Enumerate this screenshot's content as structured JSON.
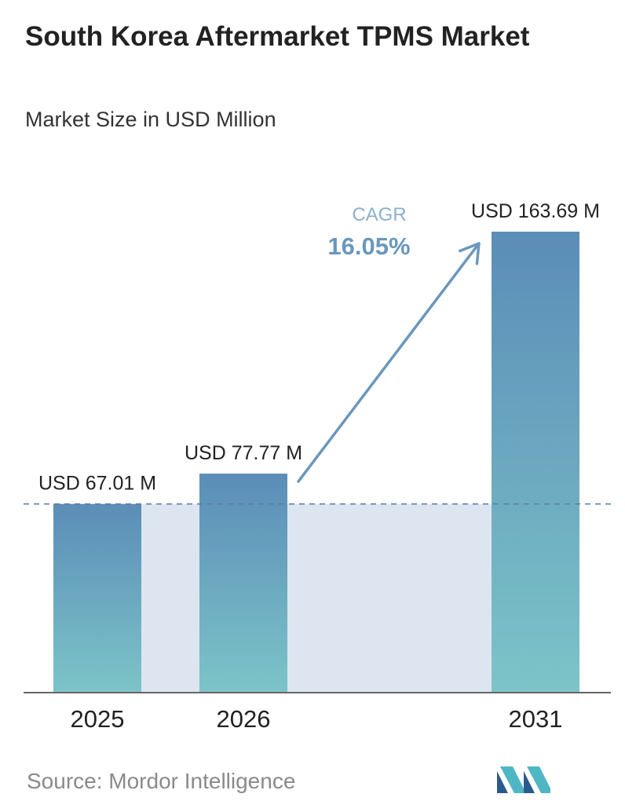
{
  "header": {
    "title": "South Korea Aftermarket TPMS Market",
    "subtitle": "Market Size in USD Million"
  },
  "chart_data": {
    "type": "bar",
    "title": "South Korea Aftermarket TPMS Market",
    "subtitle": "Market Size in USD Million",
    "categories": [
      "2025",
      "2026",
      "2031"
    ],
    "values": [
      67.01,
      77.77,
      163.69
    ],
    "data_labels": [
      "USD 67.01 M",
      "USD 77.77 M",
      "USD 163.69 M"
    ],
    "unit": "USD Million",
    "ylim": [
      0,
      163.69
    ],
    "grid": false,
    "reference_line_value": 67.01,
    "cagr": {
      "label": "CAGR",
      "value": "16.05%"
    },
    "colors": {
      "bar_top": "#5b8db8",
      "bar_bottom": "#7cc4c8",
      "band": "#dde6f0",
      "arrow": "#6a97bd",
      "cagr_label": "#8ab0cc",
      "cagr_value": "#6a97bd",
      "dashed_line": "#5a7f9f",
      "axis": "#666666"
    }
  },
  "footer": {
    "source": "Source: Mordor Intelligence",
    "logo_icon": "mordor-intelligence-logo-icon"
  }
}
